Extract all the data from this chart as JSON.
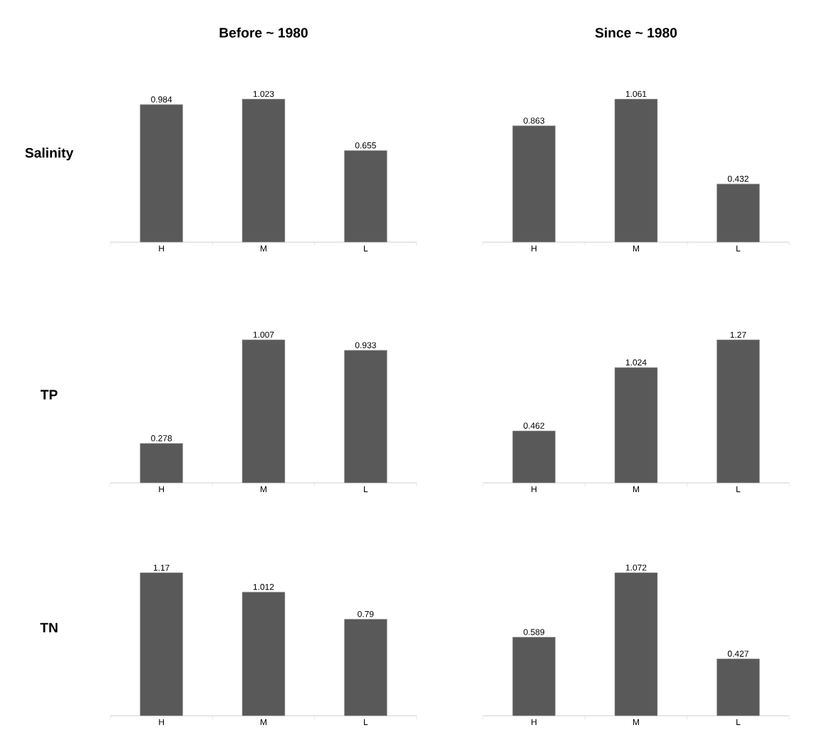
{
  "chart_data": [
    {
      "type": "bar",
      "title": "Before ~ 1980",
      "ylabel": "Salinity",
      "categories": [
        "H",
        "M",
        "L"
      ],
      "values": [
        0.984,
        1.023,
        0.655
      ],
      "color": "#595959",
      "data_labels": true
    },
    {
      "type": "bar",
      "title": "Since ~ 1980",
      "categories": [
        "H",
        "M",
        "L"
      ],
      "values": [
        0.863,
        1.061,
        0.432
      ],
      "color": "#595959",
      "data_labels": true
    },
    {
      "type": "bar",
      "ylabel": "TP",
      "categories": [
        "H",
        "M",
        "L"
      ],
      "values": [
        0.278,
        1.007,
        0.933
      ],
      "color": "#595959",
      "data_labels": true
    },
    {
      "type": "bar",
      "categories": [
        "H",
        "M",
        "L"
      ],
      "values": [
        0.462,
        1.024,
        1.27
      ],
      "color": "#595959",
      "data_labels": true
    },
    {
      "type": "bar",
      "ylabel": "TN",
      "categories": [
        "H",
        "M",
        "L"
      ],
      "values": [
        1.17,
        1.012,
        0.79
      ],
      "color": "#595959",
      "data_labels": true
    },
    {
      "type": "bar",
      "categories": [
        "H",
        "M",
        "L"
      ],
      "values": [
        0.589,
        1.072,
        0.427
      ],
      "color": "#595959",
      "data_labels": true
    }
  ]
}
